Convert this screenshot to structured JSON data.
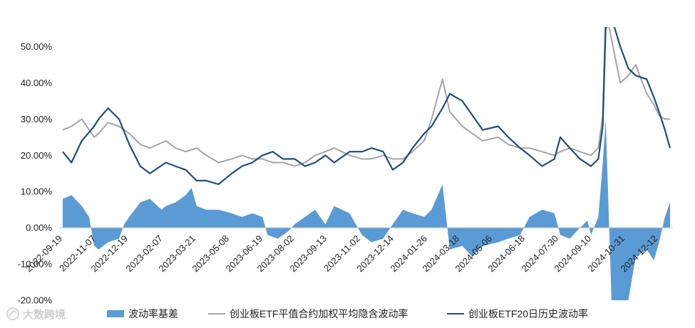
{
  "colors": {
    "basis": "#5b9bd5",
    "implied": "#a5a5a5",
    "historical": "#1f4e79",
    "axis": "#bfbfbf",
    "text": "#222222"
  },
  "watermark": {
    "icon": "watermark-logo-icon",
    "text": "大数跨境"
  },
  "chart_data": {
    "type": "line",
    "ylim": [
      -20,
      55
    ],
    "y_ticks": [
      -20,
      -10,
      0,
      10,
      20,
      30,
      40,
      50
    ],
    "y_tick_labels": [
      "-20.00%",
      "-10.00%",
      "0.00%",
      "10.00%",
      "20.00%",
      "30.00%",
      "40.00%",
      "50.00%"
    ],
    "x_tick_labels": [
      "2022-09-19",
      "2022-11-07",
      "2022-12-19",
      "2023-02-07",
      "2023-03-21",
      "2023-05-08",
      "2023-06-19",
      "2023-08-02",
      "2023-09-13",
      "2023-11-02",
      "2023-12-14",
      "2024-01-26",
      "2024-03-18",
      "2024-05-06",
      "2024-06-18",
      "2024-07-30",
      "2024-09-10",
      "2024-10-31",
      "2024-12-12"
    ],
    "legend_position": "bottom",
    "grid": false,
    "series": [
      {
        "name": "波动率基差",
        "kind": "area",
        "color": "#5b9bd5",
        "points": [
          [
            "2022-09-19",
            8
          ],
          [
            "2022-10-01",
            9
          ],
          [
            "2022-10-15",
            6
          ],
          [
            "2022-10-25",
            3
          ],
          [
            "2022-11-01",
            -5
          ],
          [
            "2022-11-07",
            -6
          ],
          [
            "2022-11-20",
            -4
          ],
          [
            "2022-12-05",
            -3
          ],
          [
            "2022-12-12",
            1
          ],
          [
            "2022-12-19",
            3
          ],
          [
            "2023-01-03",
            7
          ],
          [
            "2023-01-16",
            8
          ],
          [
            "2023-02-01",
            5
          ],
          [
            "2023-02-07",
            6
          ],
          [
            "2023-02-20",
            7
          ],
          [
            "2023-03-06",
            9
          ],
          [
            "2023-03-14",
            11
          ],
          [
            "2023-03-21",
            6
          ],
          [
            "2023-04-03",
            5
          ],
          [
            "2023-04-20",
            5
          ],
          [
            "2023-05-08",
            4
          ],
          [
            "2023-05-22",
            3
          ],
          [
            "2023-06-05",
            4
          ],
          [
            "2023-06-19",
            3
          ],
          [
            "2023-06-26",
            -2
          ],
          [
            "2023-07-10",
            -3
          ],
          [
            "2023-07-24",
            -1
          ],
          [
            "2023-08-02",
            1
          ],
          [
            "2023-08-16",
            3
          ],
          [
            "2023-08-30",
            5
          ],
          [
            "2023-09-13",
            1
          ],
          [
            "2023-09-25",
            6
          ],
          [
            "2023-10-16",
            4
          ],
          [
            "2023-11-02",
            -2
          ],
          [
            "2023-11-15",
            -4
          ],
          [
            "2023-12-01",
            -3
          ],
          [
            "2023-12-14",
            1
          ],
          [
            "2023-12-28",
            5
          ],
          [
            "2024-01-10",
            4
          ],
          [
            "2024-01-26",
            3
          ],
          [
            "2024-02-05",
            5
          ],
          [
            "2024-02-20",
            12
          ],
          [
            "2024-03-01",
            -6
          ],
          [
            "2024-03-18",
            -5
          ],
          [
            "2024-04-01",
            -8
          ],
          [
            "2024-04-15",
            -5
          ],
          [
            "2024-05-06",
            -4
          ],
          [
            "2024-05-20",
            -3
          ],
          [
            "2024-06-05",
            -2
          ],
          [
            "2024-06-18",
            3
          ],
          [
            "2024-07-05",
            5
          ],
          [
            "2024-07-22",
            4
          ],
          [
            "2024-07-30",
            -2
          ],
          [
            "2024-08-12",
            -3
          ],
          [
            "2024-08-26",
            0
          ],
          [
            "2024-09-05",
            2
          ],
          [
            "2024-09-10",
            -2
          ],
          [
            "2024-09-20",
            3
          ],
          [
            "2024-09-26",
            18
          ],
          [
            "2024-09-30",
            30
          ],
          [
            "2024-10-08",
            -20
          ],
          [
            "2024-10-20",
            -20
          ],
          [
            "2024-10-31",
            -20
          ],
          [
            "2024-11-10",
            -8
          ],
          [
            "2024-11-25",
            -6
          ],
          [
            "2024-12-05",
            -9
          ],
          [
            "2024-12-12",
            -4
          ],
          [
            "2024-12-20",
            3
          ],
          [
            "2024-12-27",
            7
          ]
        ]
      },
      {
        "name": "创业板ETF平值合约加权平均隐含波动率",
        "kind": "line",
        "color": "#a5a5a5",
        "points": [
          [
            "2022-09-19",
            27
          ],
          [
            "2022-10-01",
            28
          ],
          [
            "2022-10-15",
            30
          ],
          [
            "2022-11-01",
            25
          ],
          [
            "2022-11-07",
            26
          ],
          [
            "2022-11-20",
            29
          ],
          [
            "2022-12-05",
            28
          ],
          [
            "2022-12-19",
            26
          ],
          [
            "2023-01-03",
            23
          ],
          [
            "2023-01-16",
            22
          ],
          [
            "2023-02-07",
            24
          ],
          [
            "2023-02-20",
            22
          ],
          [
            "2023-03-06",
            21
          ],
          [
            "2023-03-21",
            22
          ],
          [
            "2023-04-03",
            20
          ],
          [
            "2023-04-20",
            18
          ],
          [
            "2023-05-08",
            19
          ],
          [
            "2023-05-22",
            20
          ],
          [
            "2023-06-05",
            19
          ],
          [
            "2023-06-19",
            19
          ],
          [
            "2023-07-03",
            18
          ],
          [
            "2023-07-17",
            18
          ],
          [
            "2023-08-02",
            17
          ],
          [
            "2023-08-16",
            18
          ],
          [
            "2023-08-30",
            20
          ],
          [
            "2023-09-13",
            21
          ],
          [
            "2023-09-25",
            22
          ],
          [
            "2023-10-16",
            20
          ],
          [
            "2023-11-02",
            19
          ],
          [
            "2023-11-15",
            19
          ],
          [
            "2023-12-01",
            20
          ],
          [
            "2023-12-14",
            19
          ],
          [
            "2023-12-28",
            19
          ],
          [
            "2024-01-10",
            21
          ],
          [
            "2024-01-26",
            24
          ],
          [
            "2024-02-05",
            30
          ],
          [
            "2024-02-20",
            41
          ],
          [
            "2024-03-01",
            32
          ],
          [
            "2024-03-18",
            28
          ],
          [
            "2024-04-01",
            26
          ],
          [
            "2024-04-15",
            24
          ],
          [
            "2024-05-06",
            25
          ],
          [
            "2024-05-20",
            23
          ],
          [
            "2024-06-05",
            22
          ],
          [
            "2024-06-18",
            22
          ],
          [
            "2024-07-05",
            21
          ],
          [
            "2024-07-22",
            20
          ],
          [
            "2024-07-30",
            21
          ],
          [
            "2024-08-12",
            22
          ],
          [
            "2024-08-26",
            21
          ],
          [
            "2024-09-10",
            20
          ],
          [
            "2024-09-20",
            22
          ],
          [
            "2024-09-26",
            31
          ],
          [
            "2024-09-30",
            60
          ],
          [
            "2024-10-08",
            52
          ],
          [
            "2024-10-20",
            40
          ],
          [
            "2024-10-31",
            42
          ],
          [
            "2024-11-10",
            45
          ],
          [
            "2024-11-25",
            37
          ],
          [
            "2024-12-05",
            34
          ],
          [
            "2024-12-12",
            31
          ],
          [
            "2024-12-20",
            30
          ],
          [
            "2024-12-27",
            30
          ]
        ]
      },
      {
        "name": "创业板ETF20日历史波动率",
        "kind": "line",
        "color": "#1f4e79",
        "points": [
          [
            "2022-09-19",
            21
          ],
          [
            "2022-10-01",
            18
          ],
          [
            "2022-10-15",
            24
          ],
          [
            "2022-11-01",
            28
          ],
          [
            "2022-11-07",
            30
          ],
          [
            "2022-11-20",
            33
          ],
          [
            "2022-12-05",
            30
          ],
          [
            "2022-12-19",
            23
          ],
          [
            "2023-01-03",
            17
          ],
          [
            "2023-01-16",
            15
          ],
          [
            "2023-02-07",
            18
          ],
          [
            "2023-02-20",
            17
          ],
          [
            "2023-03-06",
            16
          ],
          [
            "2023-03-21",
            13
          ],
          [
            "2023-04-03",
            13
          ],
          [
            "2023-04-20",
            12
          ],
          [
            "2023-05-08",
            15
          ],
          [
            "2023-05-22",
            17
          ],
          [
            "2023-06-05",
            18
          ],
          [
            "2023-06-19",
            20
          ],
          [
            "2023-07-03",
            21
          ],
          [
            "2023-07-17",
            19
          ],
          [
            "2023-08-02",
            19
          ],
          [
            "2023-08-16",
            17
          ],
          [
            "2023-08-30",
            18
          ],
          [
            "2023-09-13",
            20
          ],
          [
            "2023-09-25",
            18
          ],
          [
            "2023-10-16",
            21
          ],
          [
            "2023-11-02",
            21
          ],
          [
            "2023-11-15",
            22
          ],
          [
            "2023-12-01",
            21
          ],
          [
            "2023-12-14",
            16
          ],
          [
            "2023-12-28",
            18
          ],
          [
            "2024-01-10",
            22
          ],
          [
            "2024-01-26",
            26
          ],
          [
            "2024-02-05",
            28
          ],
          [
            "2024-02-20",
            33
          ],
          [
            "2024-03-01",
            37
          ],
          [
            "2024-03-18",
            35
          ],
          [
            "2024-04-01",
            31
          ],
          [
            "2024-04-15",
            27
          ],
          [
            "2024-05-06",
            28
          ],
          [
            "2024-05-20",
            25
          ],
          [
            "2024-06-05",
            22
          ],
          [
            "2024-06-18",
            20
          ],
          [
            "2024-07-05",
            17
          ],
          [
            "2024-07-22",
            19
          ],
          [
            "2024-07-30",
            25
          ],
          [
            "2024-08-12",
            22
          ],
          [
            "2024-08-26",
            19
          ],
          [
            "2024-09-10",
            17
          ],
          [
            "2024-09-20",
            19
          ],
          [
            "2024-09-26",
            28
          ],
          [
            "2024-09-30",
            55
          ],
          [
            "2024-10-08",
            58
          ],
          [
            "2024-10-20",
            50
          ],
          [
            "2024-10-31",
            44
          ],
          [
            "2024-11-10",
            42
          ],
          [
            "2024-11-25",
            41
          ],
          [
            "2024-12-05",
            36
          ],
          [
            "2024-12-12",
            32
          ],
          [
            "2024-12-20",
            27
          ],
          [
            "2024-12-27",
            22
          ]
        ]
      }
    ]
  }
}
